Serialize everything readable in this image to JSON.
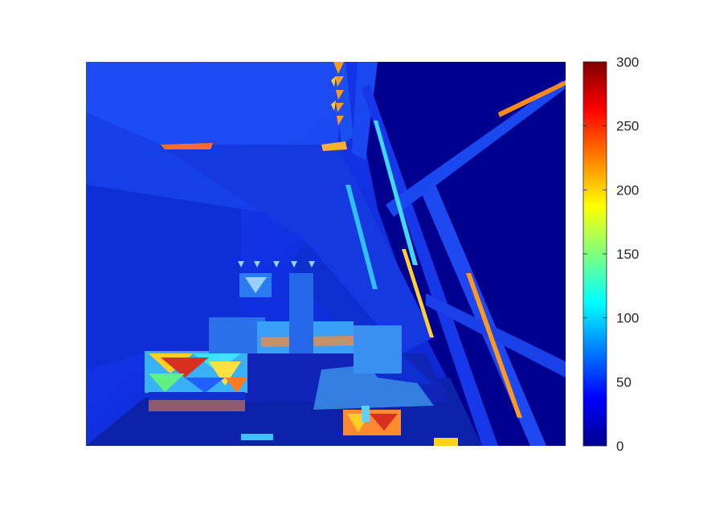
{
  "chart_data": {
    "type": "heatmap",
    "title": "",
    "xlabel": "",
    "ylabel": "",
    "colormap": "jet",
    "colorbar": {
      "clim": [
        0,
        300
      ],
      "ticks": [
        0,
        50,
        100,
        150,
        200,
        250,
        300
      ],
      "tick_labels": [
        "0",
        "50",
        "100",
        "150",
        "200",
        "250",
        "300"
      ],
      "placement": "right"
    },
    "axes_visible": false,
    "grid": false,
    "image_description": "Per-pixel error map of an indoor attic scene rendered with jet colormap; mostly low values (blue), with high values (yellow-red) along edges, beams and a few furniture regions."
  }
}
